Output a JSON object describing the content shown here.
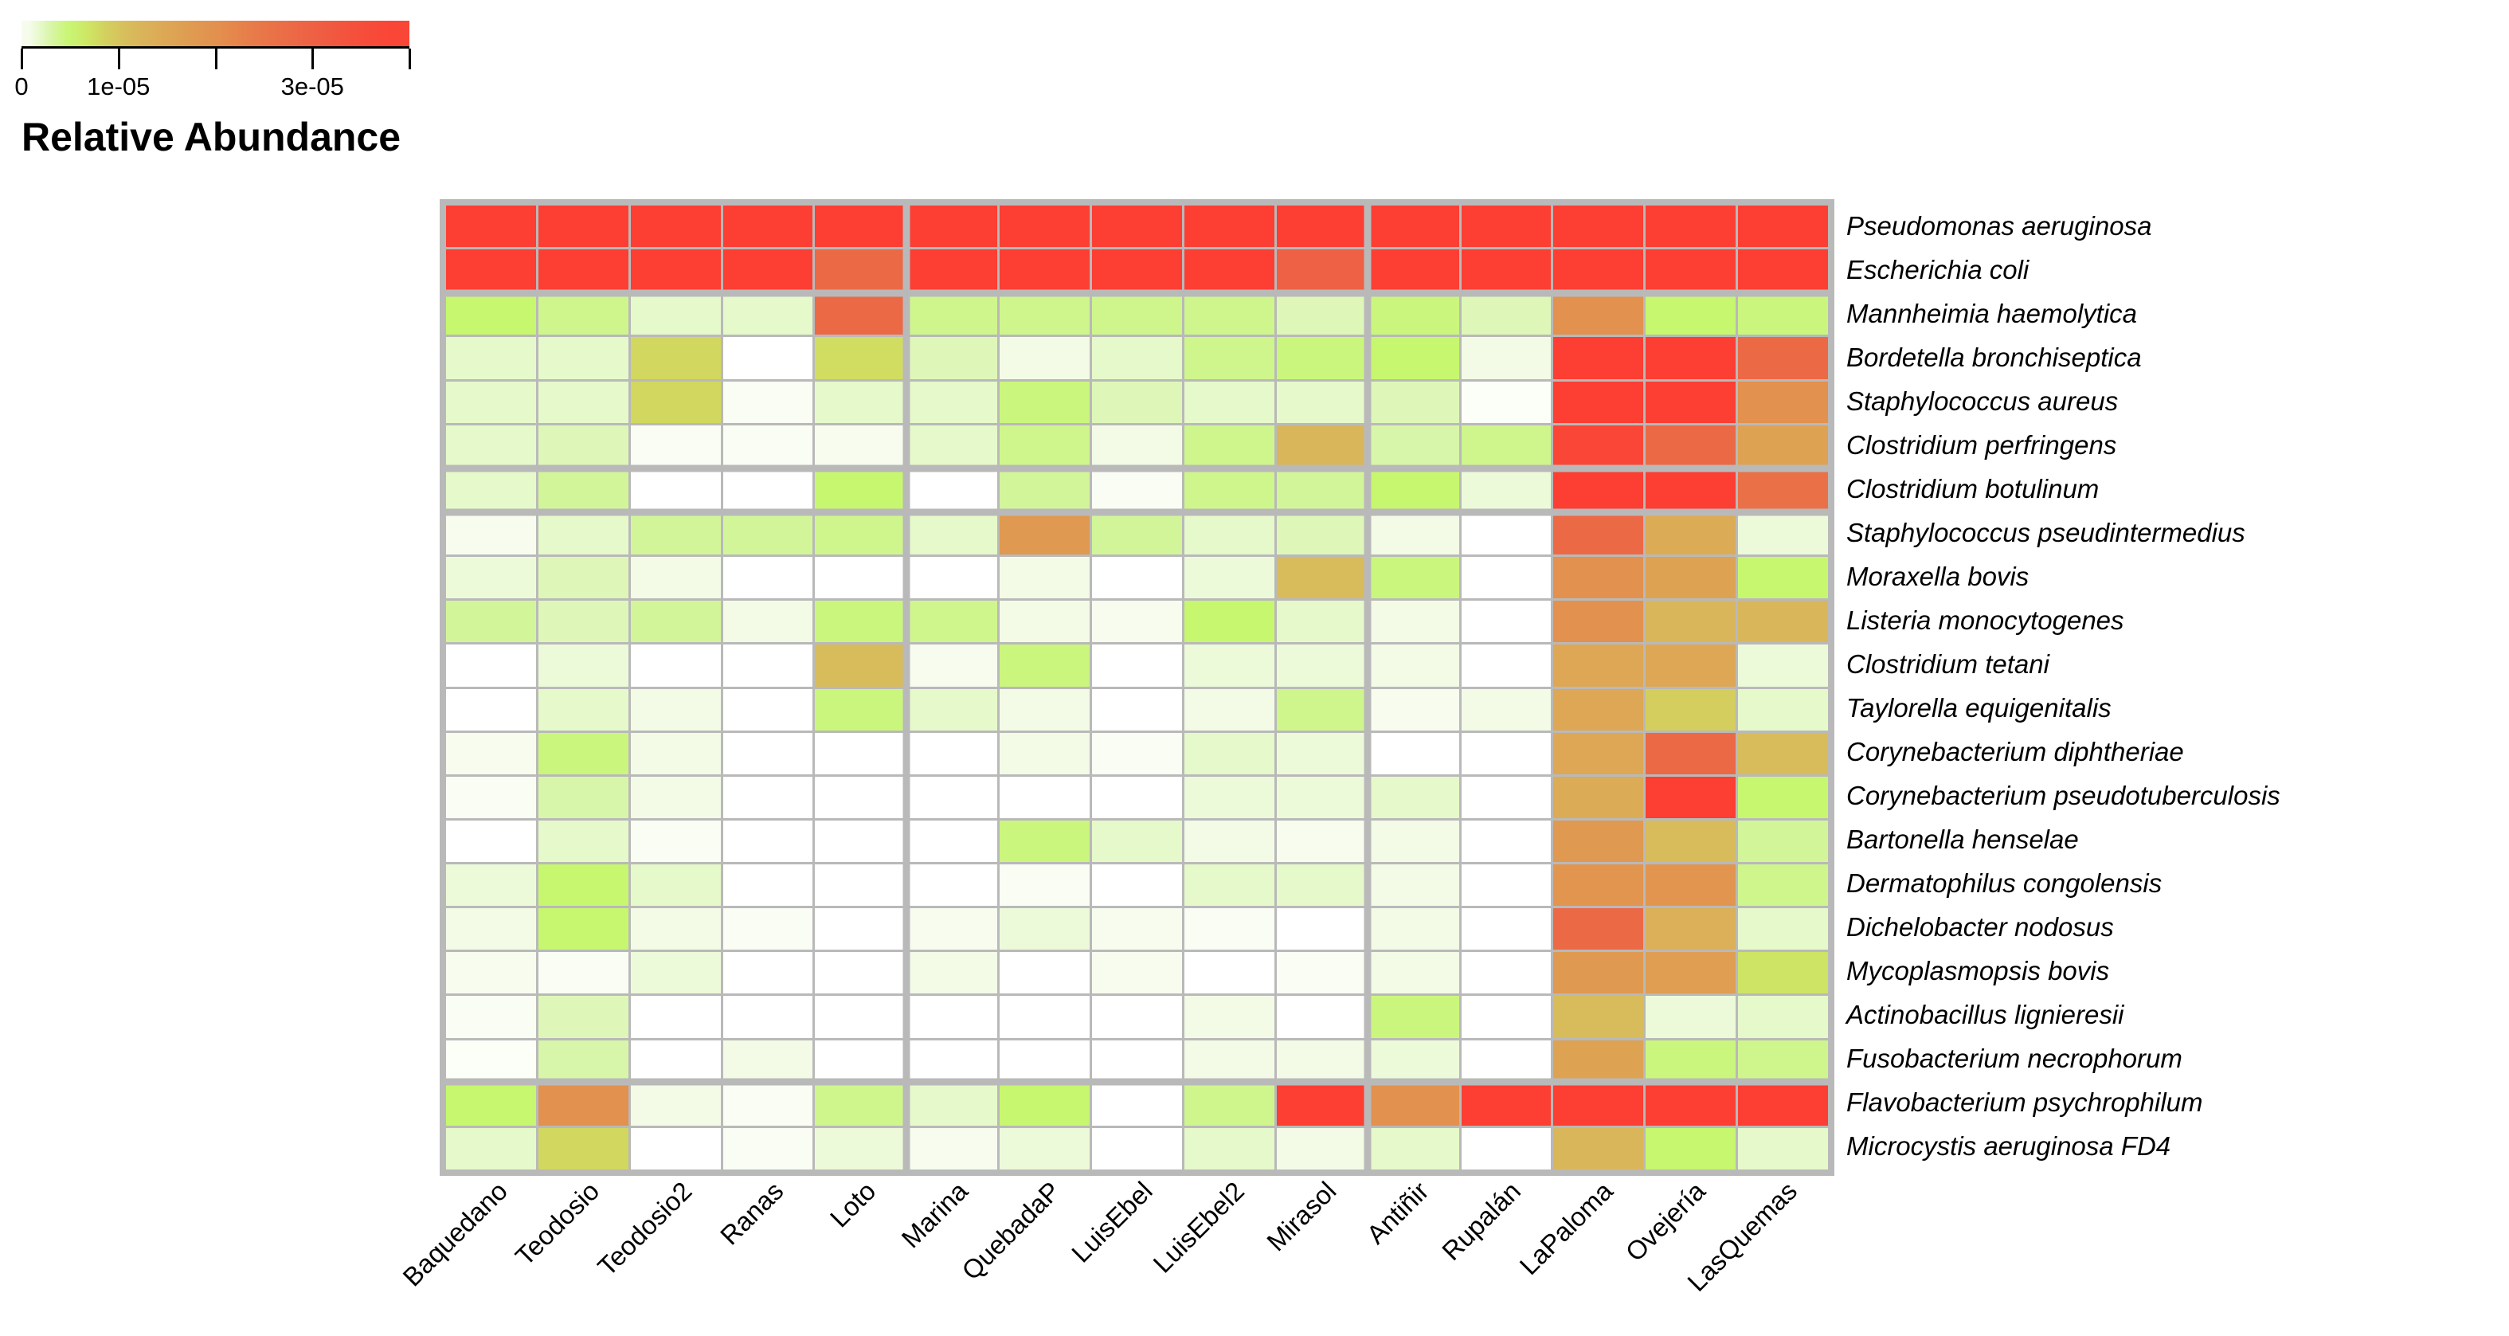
{
  "legend": {
    "title": "Relative Abundance",
    "tick_labels": [
      "0",
      "1e-05",
      "",
      "3e-05",
      ""
    ],
    "tick_positions": [
      0,
      0.25,
      0.5,
      0.75,
      1
    ]
  },
  "chart_data": {
    "type": "heatmap",
    "title": "Relative Abundance",
    "xlabel": "",
    "ylabel": "",
    "legend_position": "top-left",
    "grid": "gray cell separators, thicker separators after column 5, column 10 and after rows 2, 6, 7, 20",
    "value_range": [
      0,
      4e-05
    ],
    "value_unit_note": "values below are relative abundance in units of 1e-06, estimated from cell colors",
    "columns": [
      "Baquedano",
      "Teodosio",
      "Teodosio2",
      "Ranas",
      "Loto",
      "Marina",
      "QuebadaP",
      "LuisEbel",
      "LuisEbel2",
      "Mirasol",
      "Antiñir",
      "Rupalán",
      "LaPaloma",
      "Ovejería",
      "LasQuemas"
    ],
    "rows": [
      "Pseudomonas aeruginosa",
      "Escherichia coli",
      "Mannheimia haemolytica",
      "Bordetella bronchiseptica",
      "Staphylococcus aureus",
      "Clostridium perfringens",
      "Clostridium botulinum",
      "Staphylococcus pseudintermedius",
      "Moraxella bovis",
      "Listeria monocytogenes",
      "Clostridium tetani",
      "Taylorella equigenitalis",
      "Corynebacterium diphtheriae",
      "Corynebacterium pseudotuberculosis",
      "Bartonella henselae",
      "Dermatophilus congolensis",
      "Dichelobacter nodosus",
      "Mycoplasmopsis bovis",
      "Actinobacillus lignieresii",
      "Fusobacterium necrophorum",
      "Flavobacterium psychrophilum",
      "Microcystis aeruginosa FD4"
    ],
    "values": [
      [
        40,
        40,
        40,
        40,
        40,
        40,
        40,
        40,
        40,
        40,
        40,
        40,
        40,
        40,
        40
      ],
      [
        40,
        40,
        40,
        40,
        28,
        40,
        40,
        40,
        40,
        30,
        40,
        40,
        40,
        40,
        40
      ],
      [
        5,
        4,
        2,
        2,
        28,
        4,
        4,
        4,
        4,
        2.5,
        4.5,
        2.5,
        20,
        5,
        4.5
      ],
      [
        2,
        2,
        8,
        0,
        7.5,
        2.5,
        1,
        2,
        4,
        4.5,
        5,
        1,
        40,
        40,
        28
      ],
      [
        2,
        2,
        8,
        0.5,
        2,
        2,
        4.5,
        2.5,
        2,
        2,
        2.5,
        0.3,
        40,
        40,
        20
      ],
      [
        2,
        2.5,
        0.5,
        0.5,
        0.7,
        2,
        4,
        1,
        4,
        12,
        3,
        4,
        38,
        28,
        16
      ],
      [
        2,
        3.5,
        0,
        0,
        5,
        0,
        3.5,
        0.5,
        4,
        3.5,
        5,
        1.5,
        40,
        40,
        26
      ],
      [
        0.7,
        2,
        3.5,
        3.5,
        4,
        2,
        18,
        3.5,
        2,
        2.5,
        1,
        0,
        28,
        14,
        1.5
      ],
      [
        1.5,
        2.5,
        1,
        0,
        0,
        0,
        1,
        0,
        1.5,
        11,
        4.5,
        0,
        20,
        16,
        5
      ],
      [
        3.5,
        2.5,
        3.5,
        1,
        4.5,
        4,
        1,
        0.7,
        5,
        2,
        1,
        0,
        20,
        12,
        12
      ],
      [
        0,
        1.5,
        0,
        0,
        11,
        0.7,
        4.5,
        0,
        1.5,
        1.5,
        1,
        0,
        15,
        15,
        1.5
      ],
      [
        0,
        2,
        1,
        0,
        4.5,
        2,
        1,
        0,
        1,
        4,
        0.7,
        1,
        15,
        9,
        2
      ],
      [
        0.7,
        4.5,
        1,
        0,
        0,
        0,
        1,
        0.5,
        2,
        1.5,
        0,
        0,
        15,
        28,
        11
      ],
      [
        0.5,
        3,
        1,
        0,
        0,
        0,
        0,
        0,
        1.5,
        1.5,
        2,
        0,
        14,
        40,
        5
      ],
      [
        0,
        2,
        0.5,
        0,
        0,
        0,
        4.5,
        2,
        1,
        0.7,
        1,
        0,
        18,
        11,
        3.5
      ],
      [
        1.5,
        5,
        2,
        0,
        0,
        0,
        0.5,
        0,
        2,
        2,
        1,
        0,
        19,
        19,
        4
      ],
      [
        1,
        5,
        1,
        0.5,
        0,
        0.7,
        1.5,
        0.7,
        0.5,
        0,
        1,
        0,
        28,
        13,
        2
      ],
      [
        0.7,
        0.5,
        1.5,
        0,
        0,
        1,
        0,
        0.7,
        0,
        0.5,
        1,
        0,
        18,
        17,
        7
      ],
      [
        0.5,
        2.5,
        0,
        0,
        0,
        0,
        0,
        0,
        1,
        0,
        4.5,
        0,
        11,
        1.5,
        2
      ],
      [
        0.3,
        3,
        0,
        1,
        0,
        0,
        0,
        0,
        1,
        1,
        1.5,
        0,
        16,
        4.5,
        4
      ],
      [
        5,
        20,
        1,
        0.5,
        4,
        2,
        5,
        0,
        4,
        40,
        20,
        40,
        40,
        40,
        40
      ],
      [
        2,
        8,
        0,
        0.5,
        1.5,
        0.7,
        1.5,
        0,
        2,
        1,
        2,
        0,
        12,
        5,
        2
      ]
    ],
    "color_stops": [
      [
        0,
        "#ffffff"
      ],
      [
        0.7,
        "#f7fcef"
      ],
      [
        1.5,
        "#edfada"
      ],
      [
        2,
        "#e6f9ca"
      ],
      [
        2.5,
        "#def7b8"
      ],
      [
        3.5,
        "#d2f59a"
      ],
      [
        4.5,
        "#cbf67d"
      ],
      [
        5,
        "#c7f76e"
      ],
      [
        6.5,
        "#ccea66"
      ],
      [
        8,
        "#d2d75f"
      ],
      [
        9.5,
        "#d5c95d"
      ],
      [
        11,
        "#d8bc5b"
      ],
      [
        12.5,
        "#dab359"
      ],
      [
        14,
        "#dcab56"
      ],
      [
        16,
        "#dea253"
      ],
      [
        18,
        "#e09950"
      ],
      [
        20,
        "#e2914e"
      ],
      [
        22,
        "#e5854c"
      ],
      [
        24,
        "#e87b49"
      ],
      [
        26,
        "#ea7147"
      ],
      [
        28,
        "#ec6946"
      ],
      [
        30,
        "#ee6144"
      ],
      [
        34,
        "#f4513c"
      ],
      [
        38,
        "#fa4636"
      ],
      [
        40,
        "#fc3e33"
      ]
    ],
    "col_separators_after": [
      5,
      10
    ],
    "row_separators_after": [
      2,
      6,
      7,
      20
    ]
  },
  "colors": {
    "grid_line": "#b9b9b9",
    "axis": "#000000",
    "background": "#ffffff"
  }
}
